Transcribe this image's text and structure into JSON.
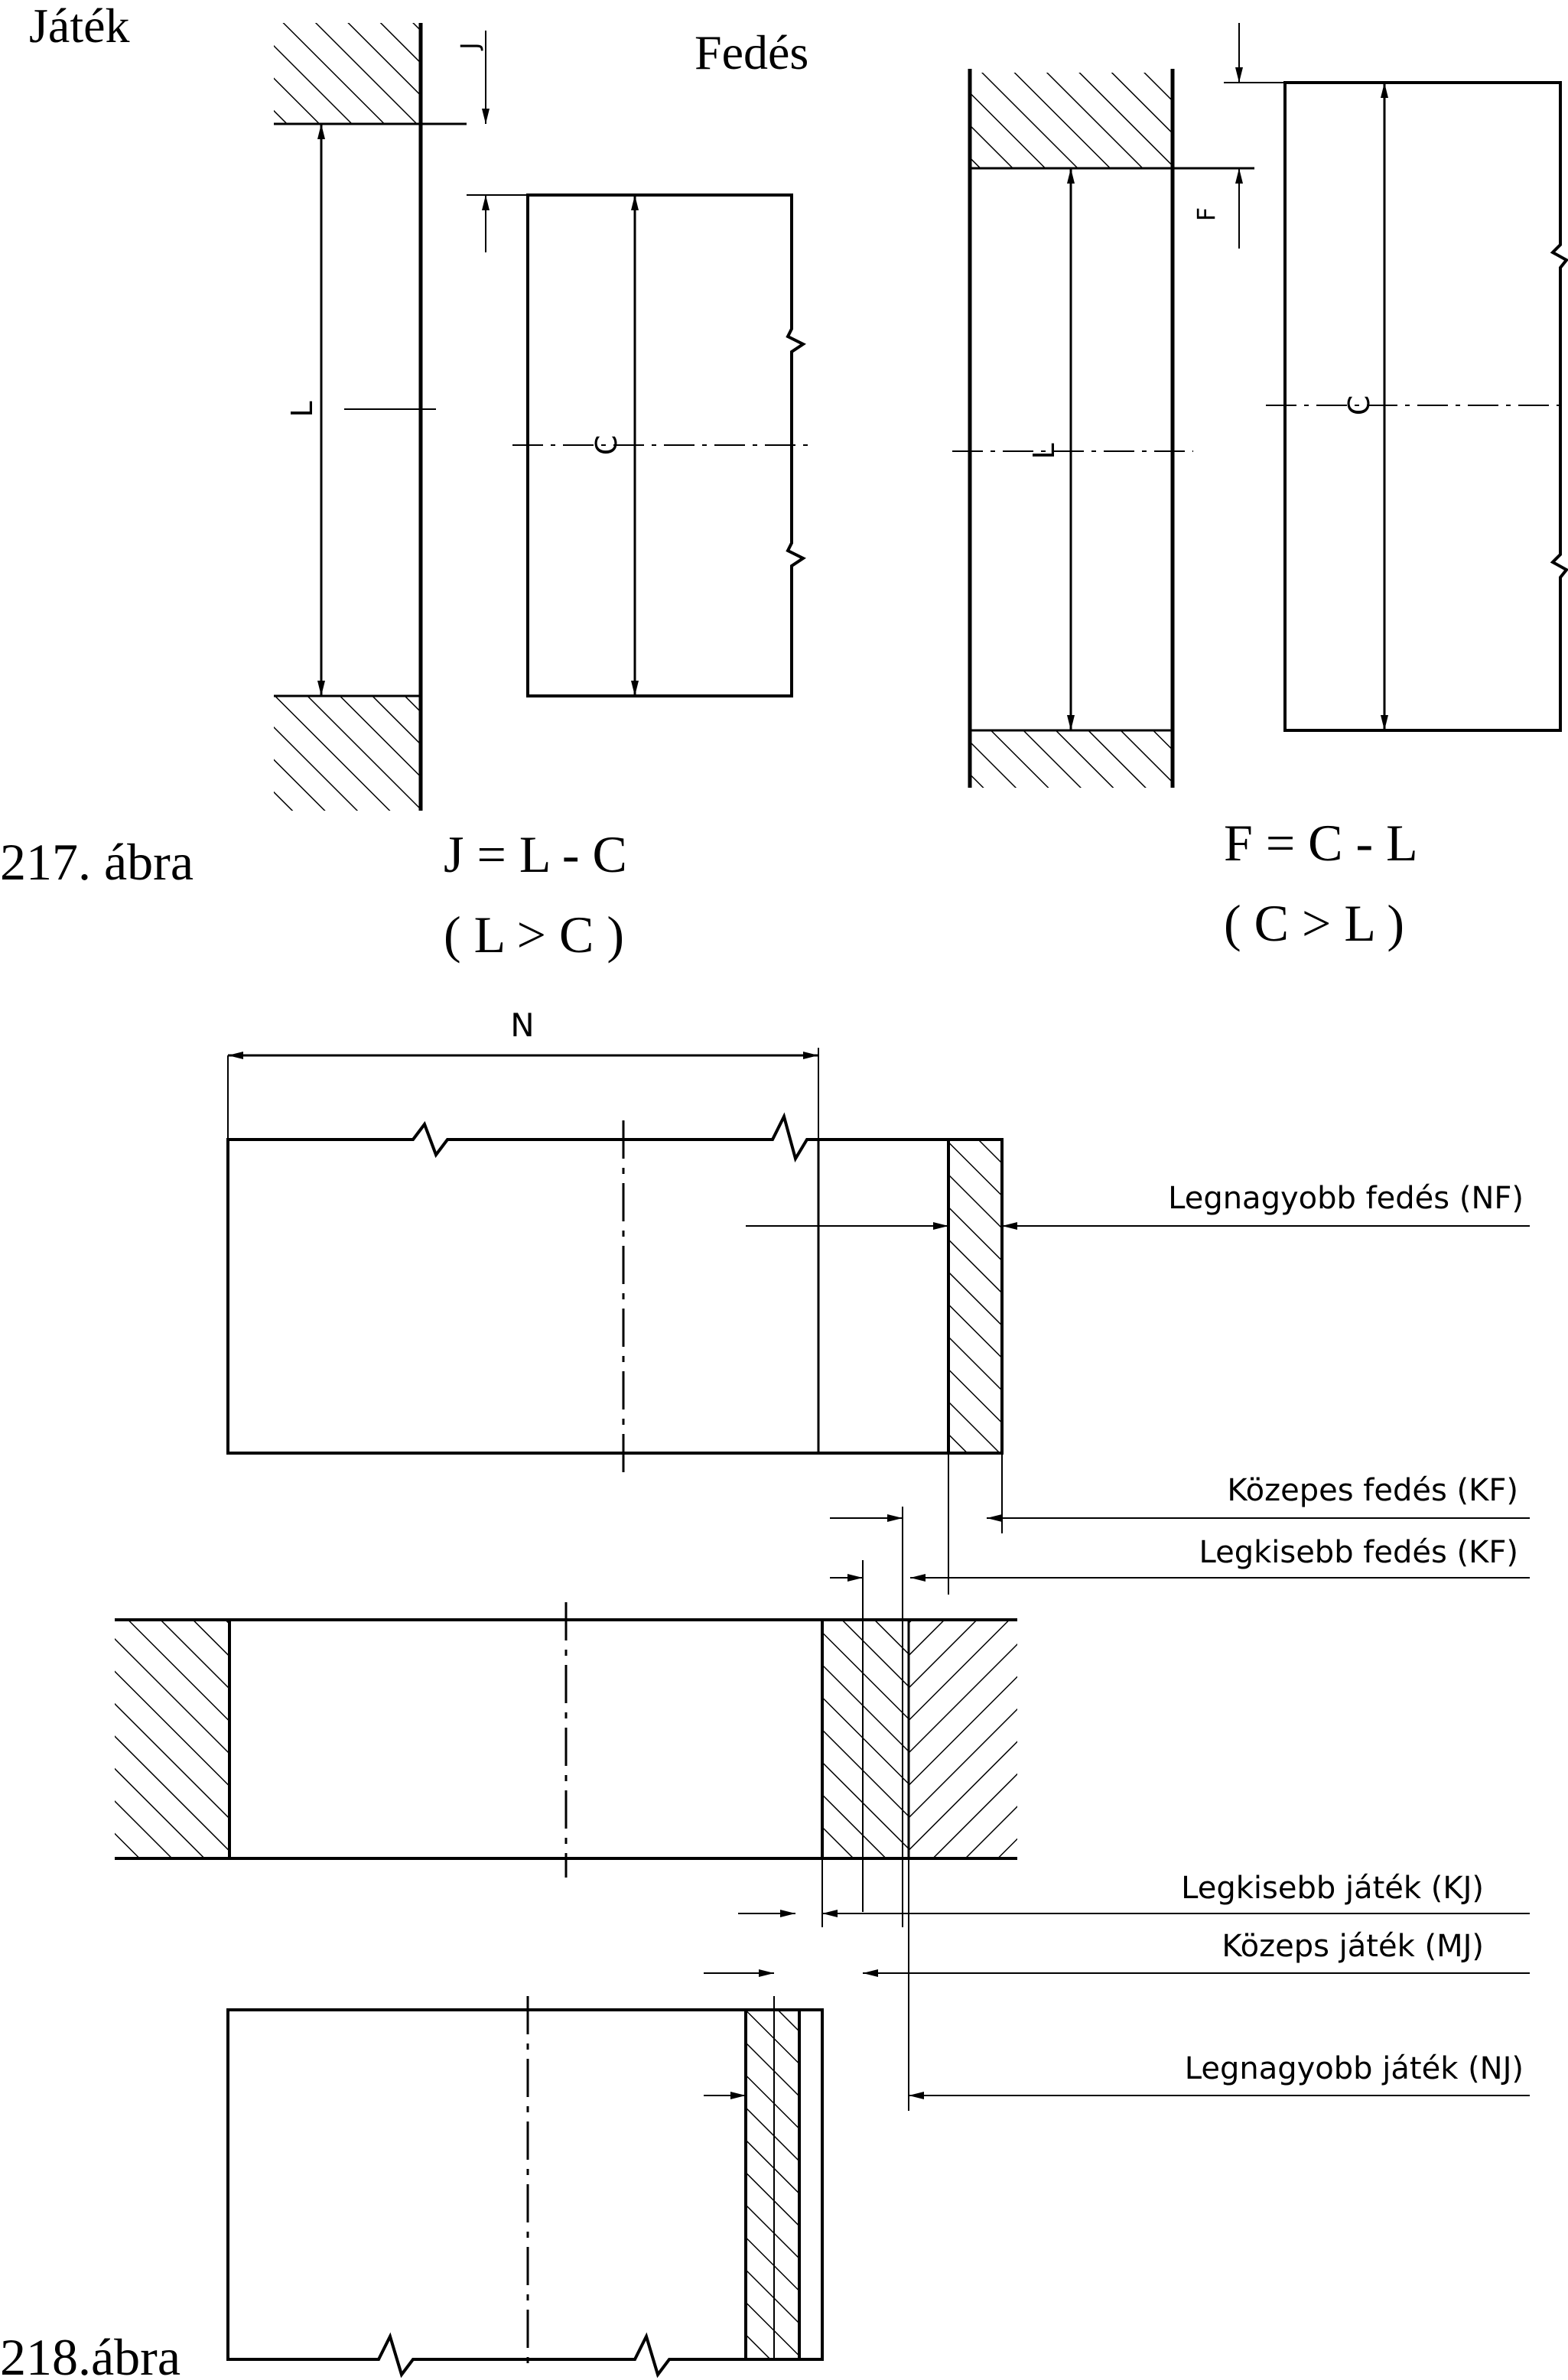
{
  "fig217": {
    "title_jatek": "Játék",
    "title_fedes": "Fedés",
    "caption": "217. ábra",
    "dim_J": "J",
    "dim_L_left": "L",
    "dim_C_left": "C",
    "dim_F": "F",
    "dim_L_right": "L",
    "dim_C_right": "C",
    "formula_J": "J = L - C",
    "condition_J": "( L > C )",
    "formula_F": "F = C - L",
    "condition_F": "( C  > L )"
  },
  "fig218": {
    "dim_N": "N",
    "label_NF": "Legnagyobb fedés (NF)",
    "label_KF_mid": "Közepes fedés (KF)",
    "label_KF_min": "Legkisebb fedés (KF)",
    "label_KJ": "Legkisebb játék (KJ)",
    "label_MJ": "Közeps játék (MJ)",
    "label_NJ": "Legnagyobb játék (NJ)",
    "caption": "218.ábra"
  },
  "colors": {
    "ink": "#000000",
    "paper": "#ffffff"
  }
}
